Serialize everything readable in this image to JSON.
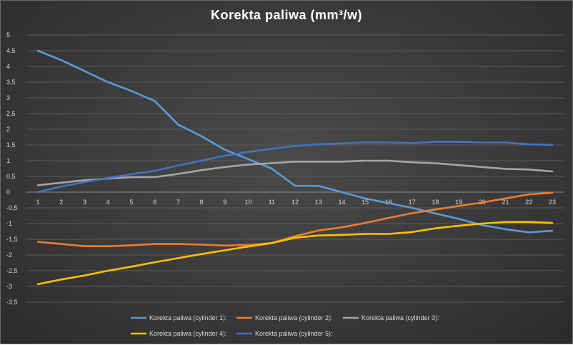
{
  "chart_data": {
    "type": "line",
    "title": "Korekta paliwa (mm³/w)",
    "xlabel": "",
    "ylabel": "",
    "x": [
      1,
      2,
      3,
      4,
      5,
      6,
      7,
      8,
      9,
      10,
      11,
      12,
      13,
      14,
      15,
      16,
      17,
      18,
      19,
      20,
      21,
      22,
      23
    ],
    "ylim": [
      -3.5,
      5
    ],
    "yticks": [
      "5",
      "4,5",
      "4",
      "3,5",
      "3",
      "2,5",
      "2",
      "1,5",
      "1",
      "0,5",
      "0",
      "-0,5",
      "-1",
      "-1,5",
      "-2",
      "-2,5",
      "-3",
      "-3,5"
    ],
    "grid": true,
    "legend": "bottom",
    "series": [
      {
        "name": "Korekta paliwa (cylinder 1):",
        "color": "#5b9bd5",
        "values": [
          4.5,
          4.2,
          3.85,
          3.5,
          3.22,
          2.9,
          2.15,
          1.78,
          1.35,
          1.05,
          0.75,
          0.2,
          0.2,
          0.0,
          -0.2,
          -0.35,
          -0.5,
          -0.68,
          -0.85,
          -1.05,
          -1.18,
          -1.28,
          -1.23
        ]
      },
      {
        "name": "Korekta paliwa (cylinder 2):",
        "color": "#ed7d31",
        "values": [
          -1.58,
          -1.65,
          -1.72,
          -1.72,
          -1.69,
          -1.65,
          -1.65,
          -1.67,
          -1.7,
          -1.68,
          -1.62,
          -1.4,
          -1.22,
          -1.12,
          -0.98,
          -0.82,
          -0.67,
          -0.55,
          -0.44,
          -0.33,
          -0.2,
          -0.07,
          -0.02
        ]
      },
      {
        "name": "Korekta paliwa (cylinder 3):",
        "color": "#a5a5a5",
        "values": [
          0.22,
          0.3,
          0.38,
          0.43,
          0.48,
          0.48,
          0.58,
          0.7,
          0.8,
          0.88,
          0.92,
          0.97,
          0.97,
          0.97,
          1.0,
          1.0,
          0.95,
          0.92,
          0.86,
          0.8,
          0.74,
          0.72,
          0.66
        ]
      },
      {
        "name": "Korekta paliwa (cylinder 4):",
        "color": "#ffc000",
        "values": [
          -2.93,
          -2.78,
          -2.65,
          -2.5,
          -2.37,
          -2.23,
          -2.1,
          -1.97,
          -1.85,
          -1.73,
          -1.62,
          -1.45,
          -1.38,
          -1.36,
          -1.33,
          -1.33,
          -1.27,
          -1.15,
          -1.07,
          -1.0,
          -0.95,
          -0.95,
          -0.98
        ]
      },
      {
        "name": "Korekta paliwa (cylinder 5):",
        "color": "#4472c4",
        "values": [
          0.0,
          0.18,
          0.32,
          0.45,
          0.57,
          0.68,
          0.85,
          1.0,
          1.16,
          1.28,
          1.38,
          1.47,
          1.52,
          1.55,
          1.58,
          1.58,
          1.56,
          1.6,
          1.6,
          1.58,
          1.58,
          1.52,
          1.5
        ]
      }
    ]
  }
}
